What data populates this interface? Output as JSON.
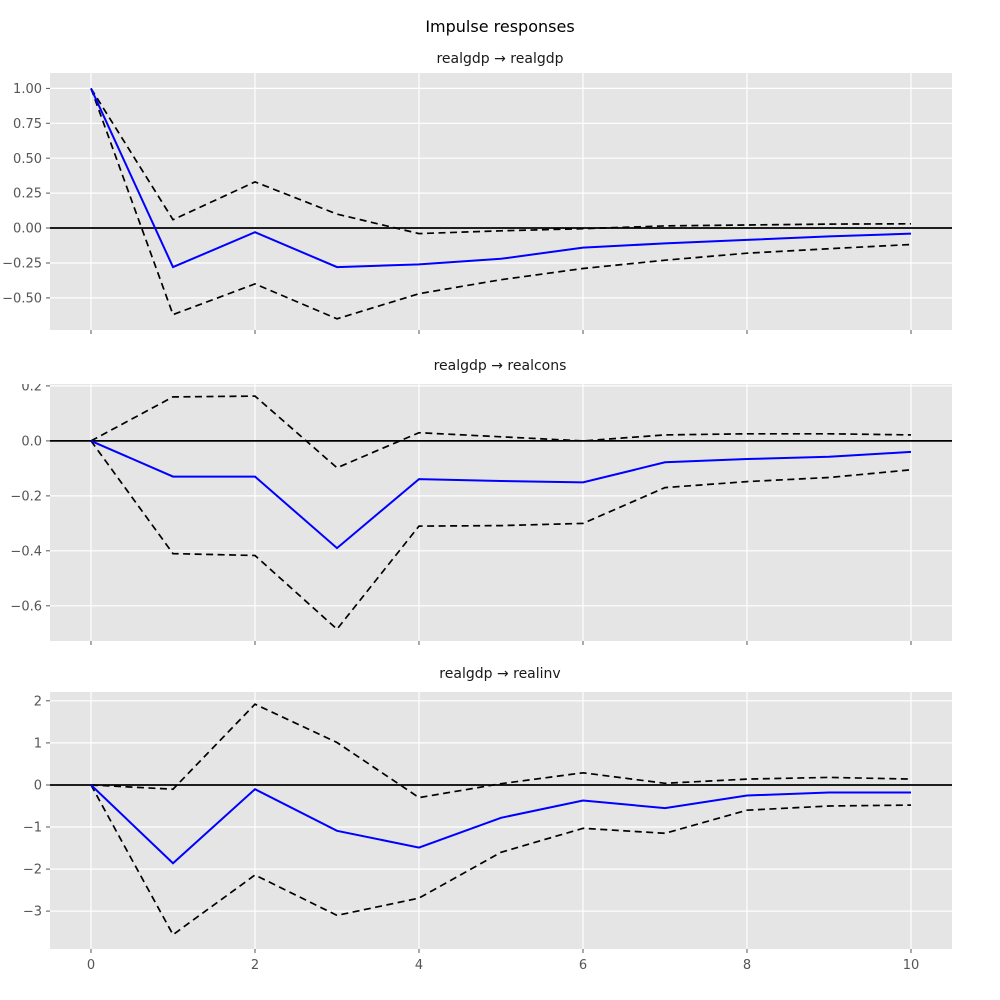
{
  "figure_title": "Impulse responses",
  "colors": {
    "figure_bg": "#ffffff",
    "axes_bg": "#e5e5e5",
    "grid": "#ffffff",
    "zero_line": "#000000",
    "ci_line": "#000000",
    "irf_line": "#0000ff",
    "tick_text": "#555555",
    "title_text": "#1a1a1a"
  },
  "chart_data": [
    {
      "type": "line",
      "title": "realgdp → realgdp",
      "x": [
        0,
        1,
        2,
        3,
        4,
        5,
        6,
        7,
        8,
        9,
        10
      ],
      "series": [
        {
          "name": "irf",
          "style": "solid-blue",
          "values": [
            1.0,
            -0.28,
            -0.03,
            -0.28,
            -0.26,
            -0.22,
            -0.14,
            -0.11,
            -0.085,
            -0.06,
            -0.04
          ]
        },
        {
          "name": "ci-upper",
          "style": "dashed-black",
          "values": [
            1.0,
            0.06,
            0.33,
            0.1,
            -0.04,
            -0.02,
            -0.005,
            0.015,
            0.022,
            0.028,
            0.03
          ]
        },
        {
          "name": "ci-lower",
          "style": "dashed-black",
          "values": [
            1.0,
            -0.62,
            -0.4,
            -0.65,
            -0.47,
            -0.37,
            -0.29,
            -0.23,
            -0.18,
            -0.148,
            -0.118
          ]
        }
      ],
      "xlim": [
        -0.5,
        10.5
      ],
      "ylim": [
        -0.73,
        1.11
      ],
      "xticks": [
        0,
        2,
        4,
        6,
        8,
        10
      ],
      "xtick_labels": [
        "0",
        "2",
        "4",
        "6",
        "8",
        "10"
      ],
      "show_xtick_labels": false,
      "yticks": [
        1.0,
        0.75,
        0.5,
        0.25,
        0.0,
        -0.25,
        -0.5
      ],
      "ytick_labels": [
        "1.00",
        "0.75",
        "0.50",
        "0.25",
        "0.00",
        "−0.25",
        "−0.50"
      ],
      "zero_line": true,
      "grid": true,
      "legend": null
    },
    {
      "type": "line",
      "title": "realgdp → realcons",
      "x": [
        0,
        1,
        2,
        3,
        4,
        5,
        6,
        7,
        8,
        9,
        10
      ],
      "series": [
        {
          "name": "irf",
          "style": "solid-blue",
          "values": [
            0.0,
            -0.13,
            -0.13,
            -0.39,
            -0.139,
            -0.146,
            -0.151,
            -0.078,
            -0.066,
            -0.058,
            -0.04
          ]
        },
        {
          "name": "ci-upper",
          "style": "dashed-black",
          "values": [
            0.0,
            0.16,
            0.163,
            -0.098,
            0.03,
            0.015,
            0.0,
            0.022,
            0.026,
            0.026,
            0.022
          ]
        },
        {
          "name": "ci-lower",
          "style": "dashed-black",
          "values": [
            0.0,
            -0.41,
            -0.417,
            -0.685,
            -0.31,
            -0.308,
            -0.3,
            -0.17,
            -0.148,
            -0.133,
            -0.105
          ]
        }
      ],
      "xlim": [
        -0.5,
        10.5
      ],
      "ylim": [
        -0.728,
        0.207
      ],
      "xticks": [
        0,
        2,
        4,
        6,
        8,
        10
      ],
      "xtick_labels": [
        "0",
        "2",
        "4",
        "6",
        "8",
        "10"
      ],
      "show_xtick_labels": false,
      "yticks": [
        0.2,
        0.0,
        -0.2,
        -0.4,
        -0.6
      ],
      "ytick_labels": [
        "0.2",
        "0.0",
        "−0.2",
        "−0.4",
        "−0.6"
      ],
      "zero_line": true,
      "grid": true,
      "legend": null
    },
    {
      "type": "line",
      "title": "realgdp → realinv",
      "x": [
        0,
        1,
        2,
        3,
        4,
        5,
        6,
        7,
        8,
        9,
        10
      ],
      "series": [
        {
          "name": "irf",
          "style": "solid-blue",
          "values": [
            0.0,
            -1.86,
            -0.1,
            -1.09,
            -1.49,
            -0.78,
            -0.37,
            -0.55,
            -0.25,
            -0.18,
            -0.18
          ]
        },
        {
          "name": "ci-upper",
          "style": "dashed-black",
          "values": [
            0.0,
            -0.1,
            1.92,
            1.01,
            -0.3,
            0.03,
            0.29,
            0.04,
            0.14,
            0.18,
            0.14
          ]
        },
        {
          "name": "ci-lower",
          "style": "dashed-black",
          "values": [
            0.0,
            -3.56,
            -2.14,
            -3.1,
            -2.69,
            -1.6,
            -1.03,
            -1.15,
            -0.6,
            -0.5,
            -0.48
          ]
        }
      ],
      "xlim": [
        -0.5,
        10.5
      ],
      "ylim": [
        -3.9,
        2.21
      ],
      "xticks": [
        0,
        2,
        4,
        6,
        8,
        10
      ],
      "xtick_labels": [
        "0",
        "2",
        "4",
        "6",
        "8",
        "10"
      ],
      "show_xtick_labels": true,
      "yticks": [
        2,
        1,
        0,
        -1,
        -2,
        -3
      ],
      "ytick_labels": [
        "2",
        "1",
        "0",
        "−1",
        "−2",
        "−3"
      ],
      "zero_line": true,
      "grid": true,
      "legend": null
    }
  ]
}
